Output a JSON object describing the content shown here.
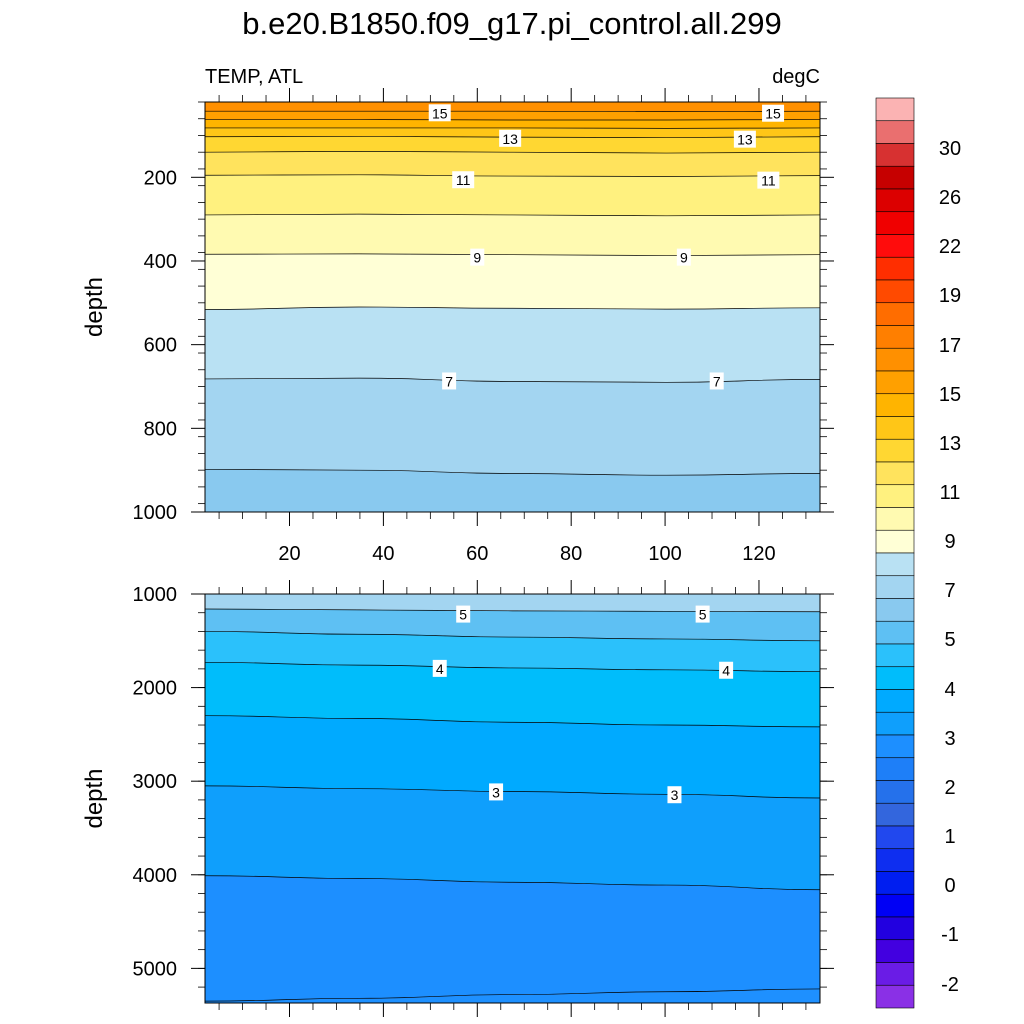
{
  "title": "b.e20.B1850.f09_g17.pi_control.all.299",
  "subtitle_left": "TEMP, ATL",
  "subtitle_right": "degC",
  "chart_data": [
    {
      "type": "contour",
      "panel": "upper",
      "ylabel": "depth",
      "xlabel": "",
      "xlim": [
        2,
        133
      ],
      "ylim": [
        1000,
        20
      ],
      "xticks": [
        20,
        40,
        60,
        80,
        100,
        120
      ],
      "yticks": [
        200,
        400,
        600,
        800,
        1000
      ],
      "isolines": [
        {
          "level": 16,
          "depths": [
            42,
            42,
            42,
            43,
            42
          ]
        },
        {
          "level": 15,
          "depths": [
            62,
            62,
            63,
            63,
            62
          ]
        },
        {
          "level": 14,
          "depths": [
            82,
            82,
            82,
            83,
            82
          ]
        },
        {
          "level": 13,
          "depths": [
            103,
            102,
            104,
            105,
            103
          ]
        },
        {
          "level": 12,
          "depths": [
            140,
            138,
            140,
            142,
            140
          ]
        },
        {
          "level": 11,
          "depths": [
            195,
            194,
            197,
            198,
            196
          ]
        },
        {
          "level": 10,
          "depths": [
            290,
            288,
            290,
            292,
            290
          ]
        },
        {
          "level": 9,
          "depths": [
            384,
            383,
            385,
            387,
            385
          ]
        },
        {
          "level": 8,
          "depths": [
            516,
            510,
            513,
            515,
            512
          ]
        },
        {
          "level": 7,
          "depths": [
            682,
            680,
            688,
            690,
            683
          ]
        },
        {
          "level": 6,
          "depths": [
            898,
            900,
            908,
            912,
            908
          ]
        }
      ],
      "contour_labels": [
        {
          "text": "15",
          "x": 52,
          "depth": 47
        },
        {
          "text": "15",
          "x": 123,
          "depth": 48
        },
        {
          "text": "13",
          "x": 67,
          "depth": 108
        },
        {
          "text": "13",
          "x": 117,
          "depth": 110
        },
        {
          "text": "11",
          "x": 57,
          "depth": 207
        },
        {
          "text": "11",
          "x": 122,
          "depth": 208
        },
        {
          "text": "9",
          "x": 60,
          "depth": 392
        },
        {
          "text": "9",
          "x": 104,
          "depth": 392
        },
        {
          "text": "7",
          "x": 54,
          "depth": 688
        },
        {
          "text": "7",
          "x": 111,
          "depth": 688
        }
      ]
    },
    {
      "type": "contour",
      "panel": "lower",
      "ylabel": "depth",
      "xlabel": "",
      "xlim": [
        2,
        133
      ],
      "ylim": [
        5370,
        1000
      ],
      "xticks": [
        20,
        40,
        60,
        80,
        100,
        120
      ],
      "yticks": [
        1000,
        2000,
        3000,
        4000,
        5000
      ],
      "isolines": [
        {
          "level": 5.5,
          "depths": [
            1160,
            1170,
            1180,
            1185,
            1190
          ]
        },
        {
          "level": 5,
          "depths": [
            1400,
            1430,
            1460,
            1480,
            1500
          ]
        },
        {
          "level": 4.5,
          "depths": [
            1730,
            1760,
            1790,
            1810,
            1830
          ]
        },
        {
          "level": 4,
          "depths": [
            2300,
            2330,
            2370,
            2400,
            2420
          ]
        },
        {
          "level": 3.5,
          "depths": [
            3050,
            3080,
            3110,
            3140,
            3180
          ]
        },
        {
          "level": 3,
          "depths": [
            4010,
            4040,
            4080,
            4110,
            4160
          ]
        },
        {
          "level": 2.5,
          "depths": [
            5350,
            5320,
            5280,
            5250,
            5220
          ]
        }
      ],
      "contour_labels": [
        {
          "text": "5",
          "x": 57,
          "depth": 1220
        },
        {
          "text": "5",
          "x": 108,
          "depth": 1220
        },
        {
          "text": "4",
          "x": 52,
          "depth": 1800
        },
        {
          "text": "4",
          "x": 113,
          "depth": 1820
        },
        {
          "text": "3",
          "x": 64,
          "depth": 3120
        },
        {
          "text": "3",
          "x": 102,
          "depth": 3150
        }
      ]
    }
  ],
  "colorbar": {
    "label_texts": [
      "30",
      "26",
      "22",
      "19",
      "17",
      "15",
      "13",
      "11",
      "9",
      "7",
      "5",
      "4",
      "3",
      "2",
      "1",
      "0",
      "-1",
      "-2"
    ],
    "colors": [
      "#fbb3b3",
      "#ea6f6f",
      "#d73131",
      "#c60000",
      "#dc0000",
      "#f00000",
      "#ff0c0c",
      "#ff2e00",
      "#ff4a00",
      "#ff6d00",
      "#ff7f00",
      "#ff9000",
      "#ffa000",
      "#ffb400",
      "#ffc617",
      "#ffd732",
      "#ffe35d",
      "#fff17f",
      "#fffab1",
      "#ffffd6",
      "#b9e1f3",
      "#a3d5f1",
      "#89c9ef",
      "#5ec0f3",
      "#2bc1fb",
      "#00bdfb",
      "#00aaff",
      "#0f9ffc",
      "#1d8fff",
      "#1e7ff8",
      "#2571eb",
      "#3366dd",
      "#2148ee",
      "#0e2ef0",
      "#001ef0",
      "#0000f5",
      "#2200e0",
      "#4200e0",
      "#6a1ce6",
      "#8a30e6"
    ]
  }
}
